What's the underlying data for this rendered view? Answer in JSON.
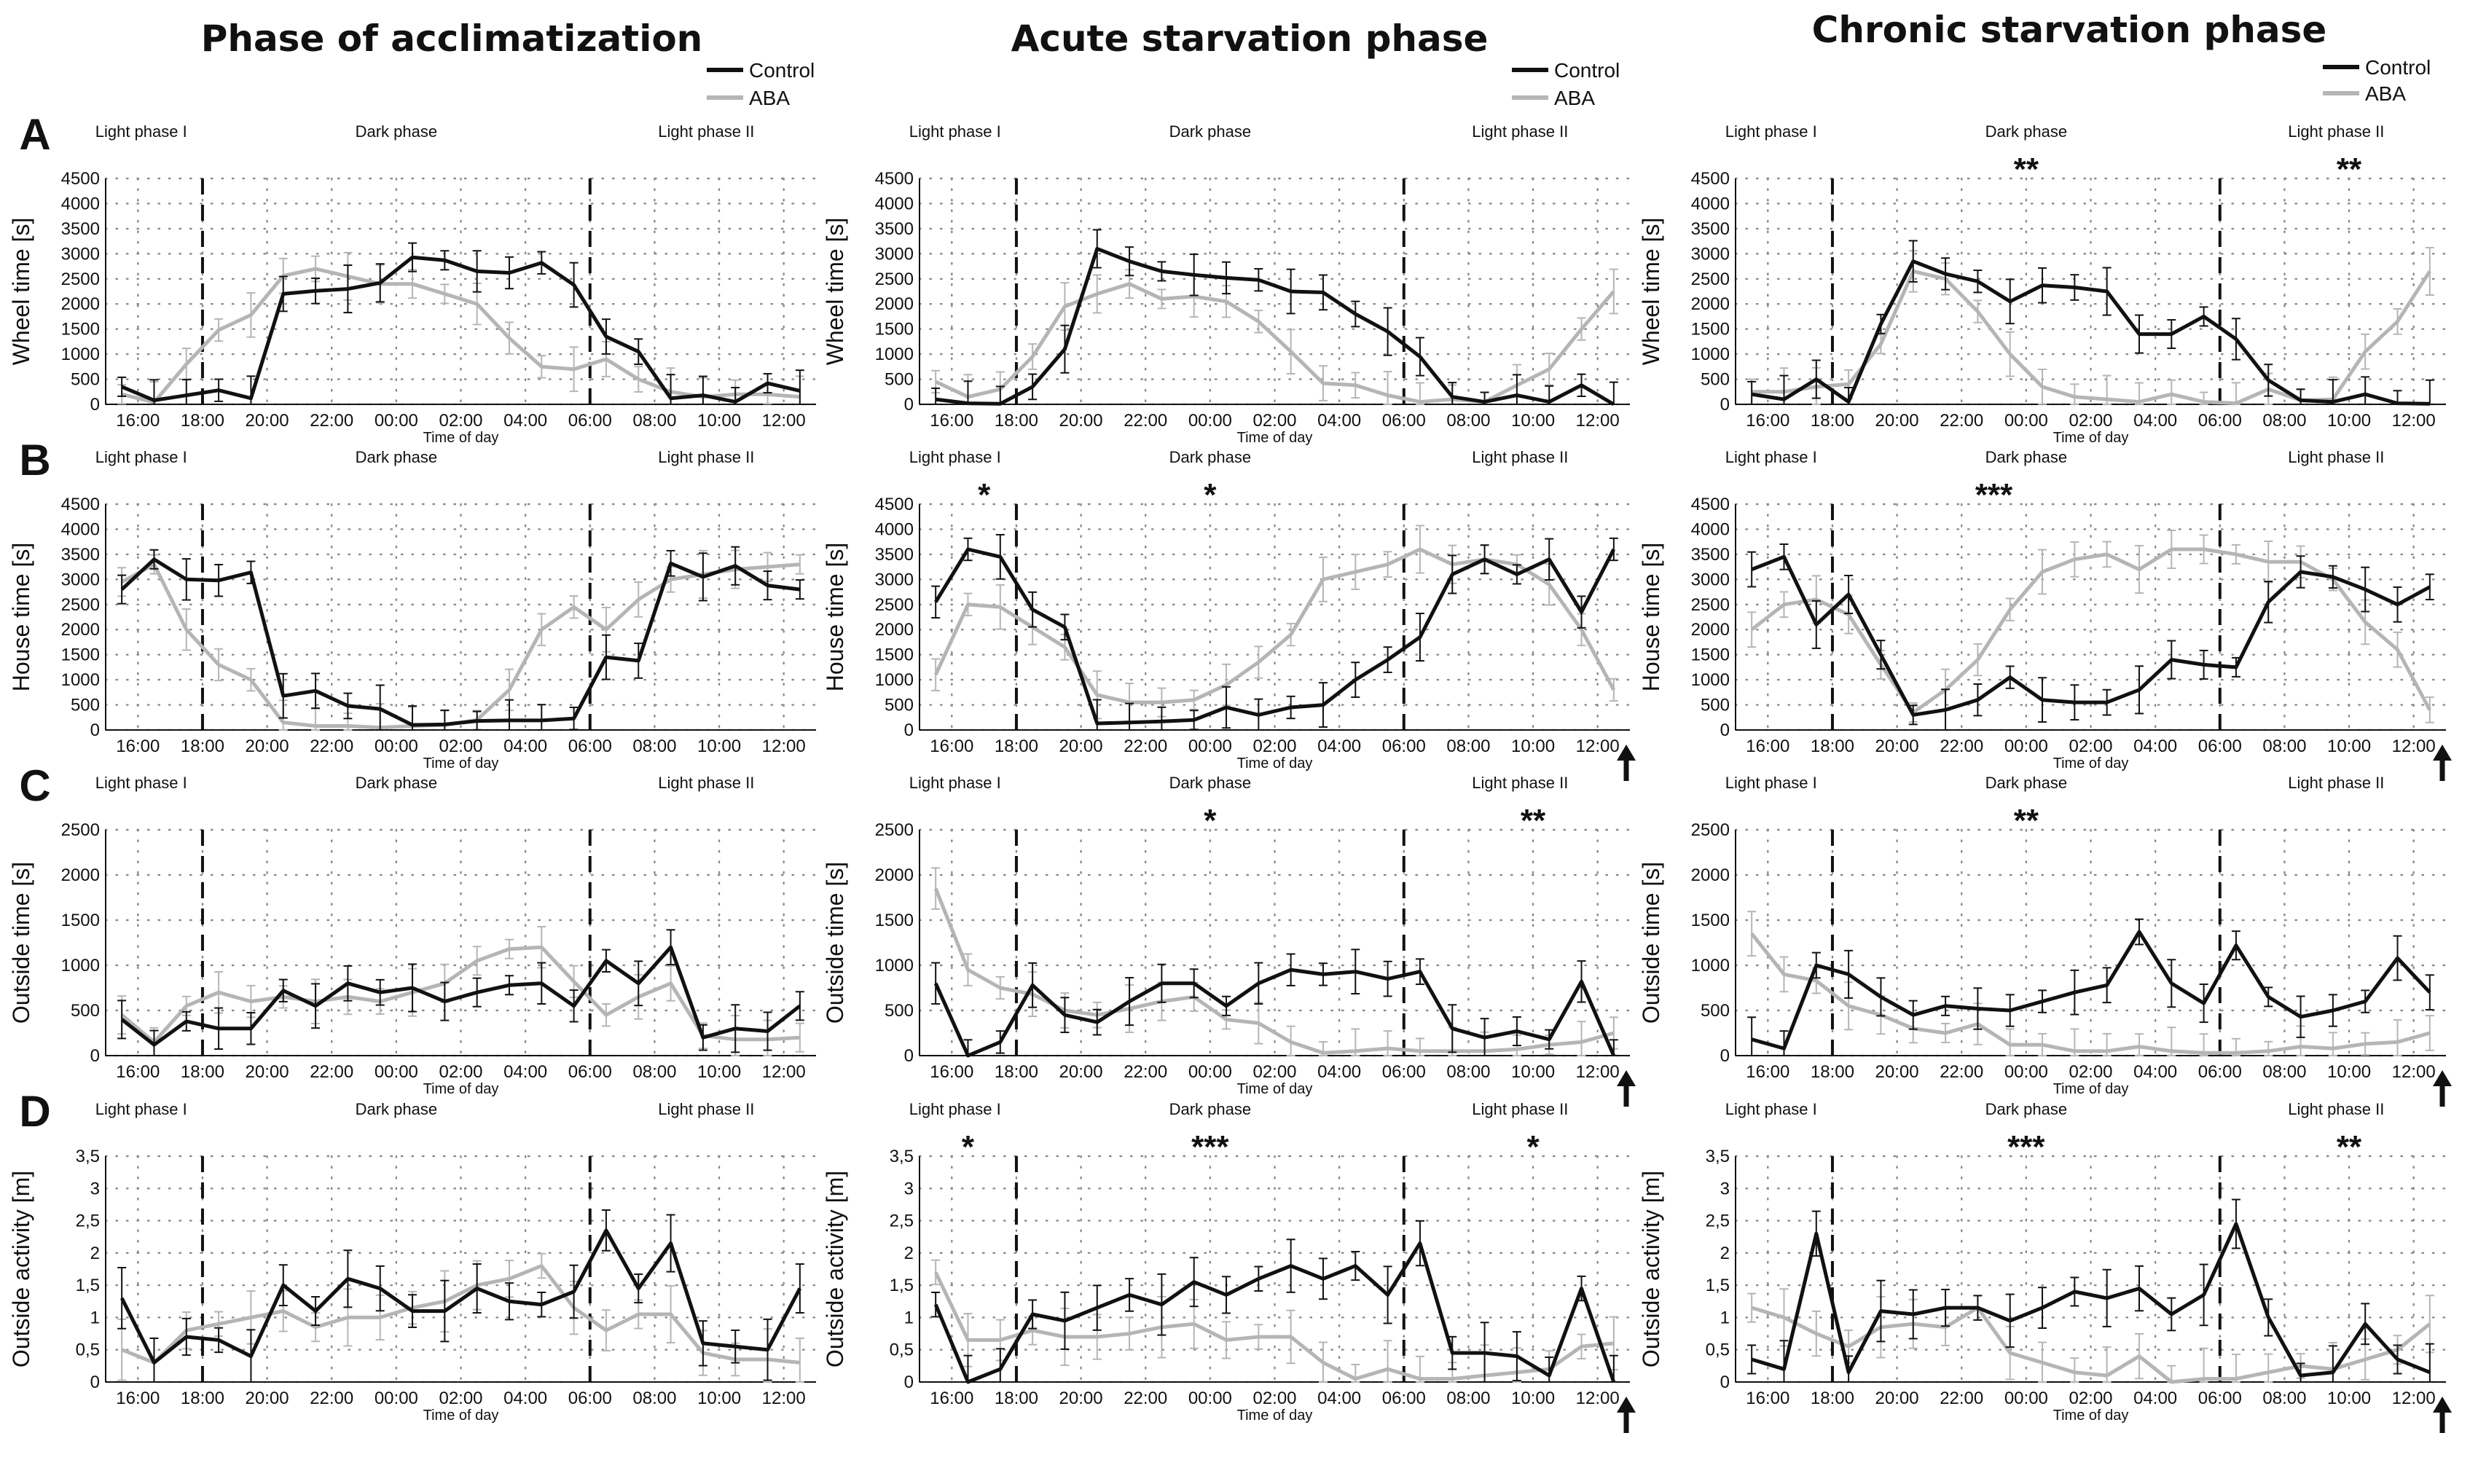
{
  "figure": {
    "colors": {
      "control": "#111111",
      "aba": "#b5b5b5"
    },
    "column_titles": [
      "Phase of acclimatization",
      "Acute starvation phase",
      "Chronic starvation phase"
    ],
    "row_letters": [
      "A",
      "B",
      "C",
      "D"
    ],
    "phase_labels": [
      "Light phase I",
      "Dark phase",
      "Light phase II"
    ],
    "legend": {
      "control": "Control",
      "aba": "ABA"
    },
    "xlabel": "Time of day",
    "ylabels": [
      "Wheel time [s]",
      "House time [s]",
      "Outside time [s]",
      "Outside activity [m]"
    ],
    "x_ticks": [
      "16:00",
      "18:00",
      "20:00",
      "22:00",
      "00:00",
      "02:00",
      "04:00",
      "06:00",
      "08:00",
      "10:00",
      "12:00"
    ],
    "y_ticks": [
      [
        "0",
        "500",
        "1000",
        "1500",
        "2000",
        "2500",
        "3000",
        "3500",
        "4000",
        "4500"
      ],
      [
        "0",
        "500",
        "1000",
        "1500",
        "2000",
        "2500",
        "3000",
        "3500",
        "4000",
        "4500"
      ],
      [
        "0",
        "500",
        "1000",
        "1500",
        "2000",
        "2500"
      ],
      [
        "0",
        "0,5",
        "1",
        "1,5",
        "2",
        "2,5",
        "3",
        "3,5"
      ]
    ],
    "arrow_marker": "timepoint indicator"
  },
  "chart_data": [
    {
      "type": "line",
      "row": "A",
      "col": 0,
      "ylim": [
        0,
        4500
      ],
      "series": [
        {
          "name": "Control",
          "values": [
            350,
            80,
            180,
            280,
            120,
            2200,
            2260,
            2300,
            2420,
            2930,
            2870,
            2650,
            2620,
            2820,
            2380,
            1350,
            1050,
            120,
            180,
            50,
            420,
            270
          ]
        },
        {
          "name": "ABA",
          "values": [
            200,
            40,
            800,
            1480,
            1780,
            2560,
            2700,
            2550,
            2400,
            2400,
            2200,
            2000,
            1320,
            750,
            700,
            900,
            500,
            250,
            150,
            200,
            200,
            150
          ]
        }
      ],
      "significance": []
    },
    {
      "type": "line",
      "row": "A",
      "col": 1,
      "ylim": [
        0,
        4500
      ],
      "series": [
        {
          "name": "Control",
          "values": [
            100,
            20,
            10,
            350,
            1100,
            3100,
            2850,
            2650,
            2580,
            2520,
            2480,
            2250,
            2230,
            1800,
            1450,
            950,
            150,
            50,
            180,
            50,
            380,
            0
          ]
        },
        {
          "name": "ABA",
          "values": [
            450,
            150,
            300,
            950,
            1950,
            2200,
            2400,
            2100,
            2150,
            2050,
            1650,
            1050,
            420,
            380,
            180,
            50,
            100,
            50,
            380,
            700,
            1500,
            2250
          ]
        }
      ],
      "significance": []
    },
    {
      "type": "line",
      "row": "A",
      "col": 2,
      "ylim": [
        0,
        4500
      ],
      "series": [
        {
          "name": "Control",
          "values": [
            200,
            100,
            500,
            50,
            1600,
            2850,
            2600,
            2450,
            2050,
            2370,
            2330,
            2250,
            1400,
            1400,
            1750,
            1300,
            480,
            80,
            50,
            200,
            20,
            10
          ]
        },
        {
          "name": "ABA",
          "values": [
            250,
            250,
            350,
            400,
            1200,
            2650,
            2500,
            1850,
            1000,
            350,
            150,
            100,
            50,
            200,
            50,
            20,
            300,
            80,
            100,
            1050,
            1650,
            2650
          ]
        }
      ],
      "significance": [
        {
          "label": "**",
          "time": "00:00"
        },
        {
          "label": "**",
          "time": "10:00"
        }
      ]
    },
    {
      "type": "line",
      "row": "B",
      "col": 0,
      "ylim": [
        0,
        4500
      ],
      "series": [
        {
          "name": "Control",
          "values": [
            2800,
            3400,
            3000,
            2980,
            3140,
            680,
            780,
            480,
            420,
            100,
            110,
            180,
            190,
            190,
            230,
            1450,
            1380,
            3320,
            3050,
            3270,
            2880,
            2800
          ]
        },
        {
          "name": "ABA",
          "values": [
            2950,
            3300,
            2000,
            1300,
            1000,
            150,
            80,
            80,
            50,
            80,
            100,
            200,
            800,
            2000,
            2450,
            2000,
            2600,
            3000,
            3100,
            3200,
            3250,
            3300
          ]
        }
      ],
      "significance": []
    },
    {
      "type": "line",
      "row": "B",
      "col": 1,
      "ylim": [
        0,
        4500
      ],
      "series": [
        {
          "name": "Control",
          "values": [
            2550,
            3600,
            3450,
            2400,
            2050,
            130,
            150,
            170,
            200,
            450,
            300,
            450,
            500,
            1000,
            1400,
            1850,
            3100,
            3400,
            3100,
            3400,
            2350,
            3600
          ]
        },
        {
          "name": "ABA",
          "values": [
            1100,
            2500,
            2450,
            2050,
            1650,
            700,
            550,
            550,
            600,
            900,
            1350,
            1900,
            3000,
            3150,
            3300,
            3600,
            3300,
            3400,
            3300,
            2900,
            2000,
            800
          ]
        }
      ],
      "significance": [
        {
          "label": "*",
          "time": "17:00"
        },
        {
          "label": "*",
          "time": "00:00"
        }
      ]
    },
    {
      "type": "line",
      "row": "B",
      "col": 2,
      "ylim": [
        0,
        4500
      ],
      "series": [
        {
          "name": "Control",
          "values": [
            3200,
            3450,
            2100,
            2700,
            1500,
            300,
            400,
            600,
            1050,
            600,
            550,
            550,
            800,
            1400,
            1300,
            1250,
            2550,
            3150,
            3050,
            2800,
            2500,
            2850
          ]
        },
        {
          "name": "ABA",
          "values": [
            2000,
            2500,
            2600,
            2300,
            1300,
            350,
            800,
            1400,
            2400,
            3150,
            3400,
            3500,
            3200,
            3600,
            3600,
            3500,
            3350,
            3350,
            3000,
            2150,
            1600,
            400
          ]
        }
      ],
      "significance": [
        {
          "label": "***",
          "time": "23:00"
        }
      ]
    },
    {
      "type": "line",
      "row": "C",
      "col": 0,
      "ylim": [
        0,
        2500
      ],
      "series": [
        {
          "name": "Control",
          "values": [
            400,
            120,
            380,
            300,
            300,
            720,
            550,
            800,
            700,
            750,
            600,
            700,
            780,
            800,
            550,
            1050,
            800,
            1200,
            200,
            300,
            270,
            550
          ]
        },
        {
          "name": "ABA",
          "values": [
            450,
            150,
            550,
            700,
            600,
            650,
            600,
            650,
            600,
            700,
            800,
            1050,
            1180,
            1200,
            820,
            450,
            650,
            800,
            220,
            180,
            180,
            200
          ]
        }
      ],
      "significance": []
    },
    {
      "type": "line",
      "row": "C",
      "col": 1,
      "ylim": [
        0,
        2500
      ],
      "series": [
        {
          "name": "Control",
          "values": [
            800,
            0,
            150,
            780,
            450,
            370,
            600,
            800,
            800,
            550,
            800,
            950,
            900,
            930,
            850,
            930,
            300,
            200,
            270,
            180,
            820,
            0
          ]
        },
        {
          "name": "ABA",
          "values": [
            1850,
            950,
            750,
            680,
            500,
            450,
            520,
            600,
            650,
            400,
            360,
            150,
            30,
            50,
            80,
            50,
            50,
            50,
            70,
            120,
            150,
            250
          ]
        }
      ],
      "significance": [
        {
          "label": "*",
          "time": "00:00"
        },
        {
          "label": "**",
          "time": "10:00"
        }
      ]
    },
    {
      "type": "line",
      "row": "C",
      "col": 2,
      "ylim": [
        0,
        2500
      ],
      "series": [
        {
          "name": "Control",
          "values": [
            180,
            80,
            1000,
            900,
            650,
            450,
            550,
            520,
            500,
            600,
            700,
            780,
            1370,
            800,
            580,
            1220,
            650,
            430,
            500,
            600,
            1080,
            700
          ]
        },
        {
          "name": "ABA",
          "values": [
            1350,
            900,
            830,
            550,
            450,
            300,
            250,
            350,
            120,
            120,
            50,
            50,
            100,
            50,
            30,
            30,
            50,
            100,
            80,
            130,
            150,
            250
          ]
        }
      ],
      "significance": [
        {
          "label": "**",
          "time": "00:00"
        }
      ]
    },
    {
      "type": "line",
      "row": "D",
      "col": 0,
      "ylim": [
        0,
        3.5
      ],
      "series": [
        {
          "name": "Control",
          "values": [
            1.3,
            0.3,
            0.7,
            0.65,
            0.4,
            1.5,
            1.1,
            1.6,
            1.45,
            1.1,
            1.1,
            1.45,
            1.25,
            1.2,
            1.4,
            2.35,
            1.45,
            2.15,
            0.6,
            0.55,
            0.5,
            1.45
          ]
        },
        {
          "name": "ABA",
          "values": [
            0.5,
            0.3,
            0.8,
            0.9,
            1.0,
            1.1,
            0.85,
            1.0,
            1.0,
            1.15,
            1.25,
            1.5,
            1.6,
            1.8,
            1.15,
            0.8,
            1.05,
            1.05,
            0.45,
            0.35,
            0.35,
            0.3
          ]
        }
      ],
      "significance": []
    },
    {
      "type": "line",
      "row": "D",
      "col": 1,
      "ylim": [
        0,
        3.5
      ],
      "series": [
        {
          "name": "Control",
          "values": [
            1.2,
            0.0,
            0.2,
            1.05,
            0.95,
            1.15,
            1.35,
            1.2,
            1.55,
            1.35,
            1.6,
            1.8,
            1.6,
            1.8,
            1.35,
            2.15,
            0.45,
            0.45,
            0.4,
            0.1,
            1.45,
            0.0
          ]
        },
        {
          "name": "ABA",
          "values": [
            1.7,
            0.65,
            0.65,
            0.8,
            0.7,
            0.7,
            0.75,
            0.85,
            0.9,
            0.65,
            0.7,
            0.7,
            0.3,
            0.05,
            0.2,
            0.05,
            0.05,
            0.1,
            0.15,
            0.2,
            0.55,
            0.6
          ]
        }
      ],
      "significance": [
        {
          "label": "*",
          "time": "16:30"
        },
        {
          "label": "***",
          "time": "00:00"
        },
        {
          "label": "*",
          "time": "10:00"
        }
      ]
    },
    {
      "type": "line",
      "row": "D",
      "col": 2,
      "ylim": [
        0,
        3.5
      ],
      "series": [
        {
          "name": "Control",
          "values": [
            0.35,
            0.2,
            2.3,
            0.15,
            1.1,
            1.05,
            1.15,
            1.15,
            0.95,
            1.15,
            1.4,
            1.3,
            1.45,
            1.05,
            1.35,
            2.45,
            1.0,
            0.1,
            0.15,
            0.9,
            0.35,
            0.15
          ]
        },
        {
          "name": "ABA",
          "values": [
            1.15,
            1.0,
            0.75,
            0.55,
            0.85,
            0.9,
            0.85,
            1.15,
            0.45,
            0.3,
            0.15,
            0.1,
            0.4,
            0.0,
            0.05,
            0.05,
            0.15,
            0.25,
            0.2,
            0.35,
            0.5,
            0.9
          ]
        }
      ],
      "significance": [
        {
          "label": "***",
          "time": "00:00"
        },
        {
          "label": "**",
          "time": "10:00"
        }
      ]
    }
  ]
}
